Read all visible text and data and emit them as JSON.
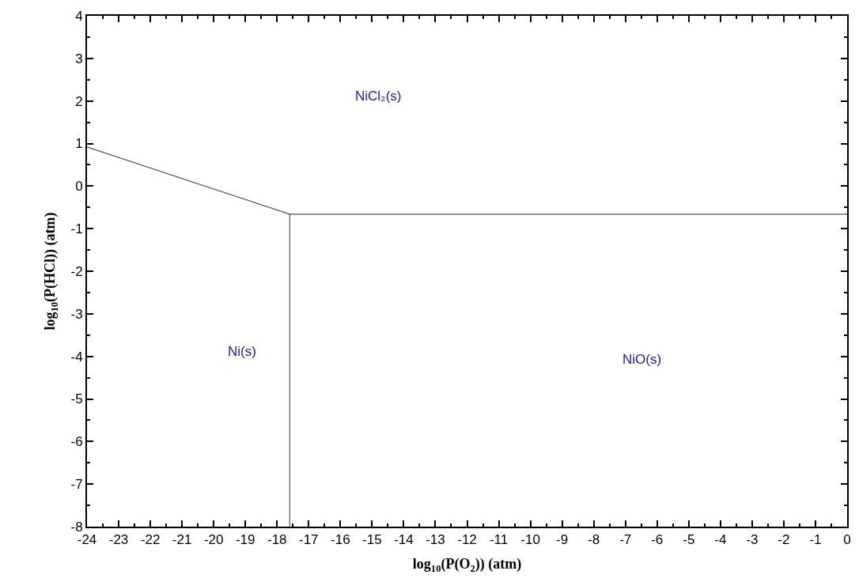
{
  "chart_data": {
    "type": "line",
    "xlabel": "log$_{10}$(P(O$_{2}$)) (atm)",
    "ylabel": "log$_{10}$(P(HCl)) (atm)",
    "series": [
      {
        "color": "#555555",
        "x": [
          -24,
          -17.6,
          0
        ],
        "values": [
          0.92,
          -0.66,
          -0.66
        ]
      },
      {
        "color": "#555555",
        "x": [
          -17.6,
          -17.6
        ],
        "values": [
          -0.66,
          -8
        ]
      }
    ],
    "annotations": [
      "NiCl₂(s)",
      "Ni(s)",
      "NiO(s)"
    ],
    "xlim": [
      -24,
      0
    ],
    "xticks": [
      -24,
      -23,
      -22,
      -21,
      -20,
      -19,
      -18,
      -17,
      -16,
      -15,
      -14,
      -13,
      -12,
      -11,
      -10,
      -9,
      -8,
      -7,
      -6,
      -5,
      -4,
      -3,
      -2,
      -1,
      0
    ],
    "ylim": [
      -8,
      4
    ],
    "yticks": [
      -8,
      -7,
      -6,
      -5,
      -4,
      -3,
      -2,
      -1,
      0,
      1,
      2,
      3,
      4
    ],
    "marker": "none",
    "line_style": "solid"
  }
}
